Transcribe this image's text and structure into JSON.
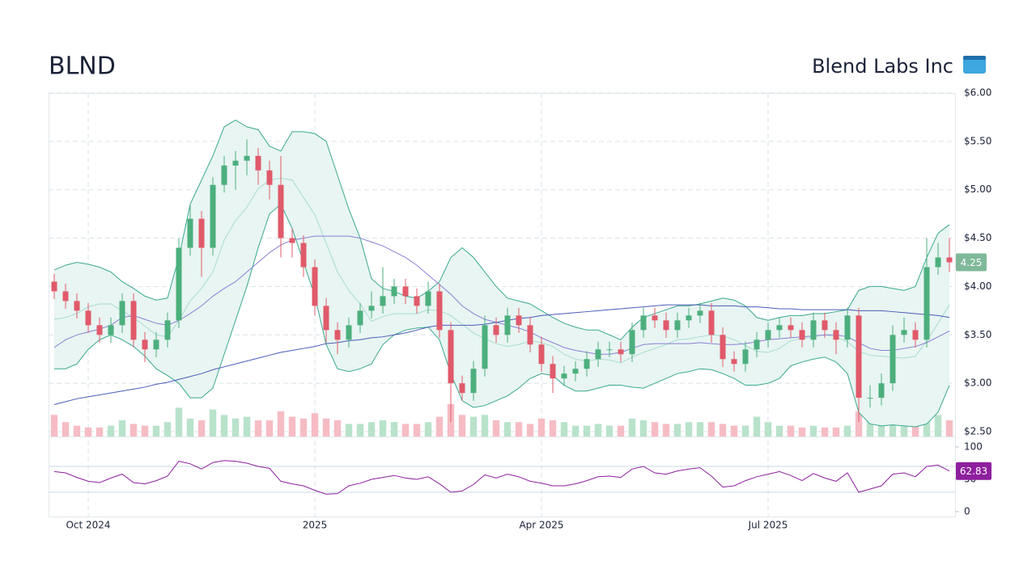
{
  "chart_data": {
    "type": "candlestick",
    "title": "BLND",
    "company": "Blend Labs Inc",
    "categories": [
      null,
      null,
      null,
      "Oct 2024",
      null,
      null,
      null,
      null,
      null,
      null,
      null,
      null,
      null,
      null,
      null,
      null,
      null,
      null,
      null,
      null,
      null,
      null,
      null,
      "2025",
      null,
      null,
      null,
      null,
      null,
      null,
      null,
      null,
      null,
      null,
      null,
      null,
      null,
      null,
      null,
      null,
      null,
      null,
      null,
      "Apr 2025",
      null,
      null,
      null,
      null,
      null,
      null,
      null,
      null,
      null,
      null,
      null,
      null,
      null,
      null,
      null,
      null,
      null,
      null,
      null,
      "Jul 2025",
      null,
      null,
      null,
      null,
      null,
      null,
      null,
      null,
      null,
      null,
      null,
      null,
      null,
      null,
      null,
      null
    ],
    "open": [
      4.05,
      3.95,
      3.85,
      3.75,
      3.6,
      3.5,
      3.6,
      3.85,
      3.45,
      3.35,
      3.45,
      3.65,
      4.4,
      4.7,
      4.4,
      5.05,
      5.25,
      5.3,
      5.35,
      5.2,
      5.05,
      4.5,
      4.45,
      4.2,
      3.8,
      3.55,
      3.45,
      3.6,
      3.75,
      3.8,
      3.9,
      4.0,
      3.9,
      3.8,
      3.95,
      3.55,
      3.0,
      2.9,
      3.15,
      3.6,
      3.5,
      3.7,
      3.6,
      3.4,
      3.2,
      3.05,
      3.1,
      3.15,
      3.25,
      3.35,
      3.35,
      3.3,
      3.55,
      3.7,
      3.65,
      3.55,
      3.65,
      3.7,
      3.75,
      3.5,
      3.25,
      3.2,
      3.35,
      3.45,
      3.55,
      3.6,
      3.55,
      3.45,
      3.65,
      3.55,
      3.45,
      3.7,
      2.85,
      2.85,
      3.0,
      3.5,
      3.55,
      3.45,
      4.2,
      4.3
    ],
    "high": [
      4.13,
      4.03,
      3.93,
      3.83,
      3.68,
      3.68,
      3.93,
      3.93,
      3.53,
      3.53,
      3.73,
      4.5,
      4.85,
      4.78,
      5.13,
      5.35,
      5.4,
      5.52,
      5.43,
      5.3,
      5.35,
      4.6,
      4.53,
      4.28,
      3.88,
      3.63,
      3.68,
      3.83,
      3.95,
      4.2,
      4.08,
      4.08,
      3.98,
      4.05,
      4.03,
      3.63,
      3.08,
      3.23,
      3.7,
      3.68,
      3.78,
      3.78,
      3.68,
      3.48,
      3.28,
      3.18,
      3.23,
      3.33,
      3.43,
      3.43,
      3.43,
      3.63,
      3.78,
      3.78,
      3.73,
      3.73,
      3.78,
      3.83,
      3.83,
      3.58,
      3.33,
      3.43,
      3.53,
      3.63,
      3.68,
      3.68,
      3.63,
      3.73,
      3.73,
      3.63,
      3.78,
      3.78,
      2.98,
      3.1,
      3.6,
      3.68,
      3.63,
      4.5,
      4.45,
      4.5
    ],
    "low": [
      3.87,
      3.77,
      3.67,
      3.52,
      3.42,
      3.42,
      3.52,
      3.37,
      3.22,
      3.27,
      3.37,
      3.57,
      4.32,
      4.1,
      4.32,
      4.97,
      5.0,
      5.15,
      5.05,
      4.9,
      4.3,
      4.3,
      4.1,
      3.7,
      3.42,
      3.3,
      3.37,
      3.52,
      3.67,
      3.72,
      3.82,
      3.82,
      3.72,
      3.72,
      3.47,
      2.6,
      2.82,
      2.82,
      3.07,
      3.42,
      3.42,
      3.52,
      3.32,
      3.12,
      2.9,
      2.97,
      3.02,
      3.07,
      3.17,
      3.27,
      3.22,
      3.22,
      3.47,
      3.57,
      3.47,
      3.47,
      3.57,
      3.62,
      3.42,
      3.17,
      3.12,
      3.12,
      3.27,
      3.37,
      3.47,
      3.47,
      3.37,
      3.37,
      3.47,
      3.3,
      3.37,
      2.6,
      2.75,
      2.77,
      2.92,
      3.42,
      3.37,
      3.37,
      4.12,
      4.15
    ],
    "close": [
      3.95,
      3.85,
      3.75,
      3.6,
      3.5,
      3.6,
      3.85,
      3.45,
      3.35,
      3.45,
      3.65,
      4.4,
      4.7,
      4.4,
      5.05,
      5.25,
      5.3,
      5.35,
      5.2,
      5.05,
      4.5,
      4.45,
      4.2,
      3.8,
      3.55,
      3.45,
      3.6,
      3.75,
      3.8,
      3.9,
      4.0,
      3.9,
      3.8,
      3.95,
      3.55,
      3.0,
      2.9,
      3.15,
      3.6,
      3.5,
      3.7,
      3.6,
      3.4,
      3.2,
      3.05,
      3.1,
      3.15,
      3.25,
      3.35,
      3.35,
      3.3,
      3.55,
      3.7,
      3.65,
      3.55,
      3.65,
      3.7,
      3.75,
      3.5,
      3.25,
      3.2,
      3.35,
      3.45,
      3.55,
      3.6,
      3.55,
      3.45,
      3.65,
      3.55,
      3.45,
      3.7,
      2.85,
      2.85,
      3.0,
      3.5,
      3.55,
      3.45,
      4.2,
      4.3,
      4.25
    ],
    "volume": [
      1.2,
      0.8,
      0.6,
      0.5,
      0.5,
      0.6,
      0.9,
      0.7,
      0.6,
      0.6,
      0.8,
      1.6,
      1.0,
      0.9,
      1.5,
      1.2,
      1.0,
      1.1,
      0.9,
      0.9,
      1.4,
      1.1,
      1.0,
      1.3,
      1.0,
      0.9,
      0.7,
      0.7,
      0.8,
      0.9,
      0.8,
      0.7,
      0.7,
      0.8,
      1.1,
      1.8,
      1.2,
      1.1,
      1.2,
      0.9,
      0.8,
      0.8,
      0.7,
      1.0,
      0.9,
      0.8,
      0.6,
      0.6,
      0.7,
      0.6,
      0.6,
      1.0,
      0.9,
      0.8,
      0.7,
      0.7,
      0.8,
      0.8,
      0.8,
      0.7,
      0.6,
      0.6,
      1.1,
      0.8,
      0.6,
      0.6,
      0.5,
      0.6,
      0.5,
      0.5,
      0.6,
      1.4,
      1.0,
      1.2,
      1.3,
      1.0,
      0.9,
      1.8,
      1.2,
      0.9
    ],
    "up_color": "#4caf7d",
    "down_color": "#e05a6a",
    "volume_up_color": "#b9e2cb",
    "volume_down_color": "#f6bcc4",
    "bollinger": {
      "upper": [
        4.17,
        4.22,
        4.25,
        4.23,
        4.2,
        4.15,
        4.05,
        3.98,
        3.9,
        3.86,
        3.88,
        4.3,
        4.85,
        5.1,
        5.35,
        5.65,
        5.72,
        5.65,
        5.62,
        5.45,
        5.4,
        5.6,
        5.6,
        5.58,
        5.5,
        5.15,
        4.8,
        4.5,
        4.08,
        3.98,
        3.95,
        3.9,
        3.88,
        3.95,
        4.05,
        4.3,
        4.4,
        4.3,
        4.15,
        4.0,
        3.88,
        3.85,
        3.82,
        3.75,
        3.68,
        3.62,
        3.58,
        3.55,
        3.55,
        3.5,
        3.45,
        3.58,
        3.68,
        3.72,
        3.76,
        3.8,
        3.8,
        3.82,
        3.85,
        3.88,
        3.86,
        3.8,
        3.68,
        3.65,
        3.68,
        3.7,
        3.7,
        3.72,
        3.72,
        3.74,
        3.76,
        3.96,
        4.0,
        4.0,
        3.98,
        3.96,
        4.0,
        4.3,
        4.55,
        4.64
      ],
      "middle": [
        3.66,
        3.68,
        3.72,
        3.79,
        3.82,
        3.82,
        3.75,
        3.68,
        3.59,
        3.5,
        3.48,
        3.65,
        3.85,
        3.98,
        4.15,
        4.48,
        4.68,
        4.82,
        5.01,
        5.1,
        5.12,
        5.1,
        4.92,
        4.74,
        4.45,
        4.15,
        3.96,
        3.82,
        3.64,
        3.69,
        3.72,
        3.72,
        3.72,
        3.76,
        3.75,
        3.7,
        3.61,
        3.52,
        3.46,
        3.41,
        3.38,
        3.4,
        3.44,
        3.42,
        3.38,
        3.3,
        3.25,
        3.23,
        3.25,
        3.24,
        3.21,
        3.27,
        3.32,
        3.36,
        3.4,
        3.45,
        3.46,
        3.48,
        3.5,
        3.49,
        3.45,
        3.39,
        3.33,
        3.32,
        3.36,
        3.44,
        3.46,
        3.48,
        3.5,
        3.48,
        3.43,
        3.33,
        3.29,
        3.28,
        3.27,
        3.26,
        3.28,
        3.44,
        3.62,
        3.81
      ],
      "lower": [
        3.15,
        3.15,
        3.2,
        3.35,
        3.45,
        3.5,
        3.45,
        3.38,
        3.28,
        3.15,
        3.08,
        3.0,
        2.85,
        2.85,
        2.95,
        3.3,
        3.65,
        4.0,
        4.4,
        4.75,
        4.85,
        4.6,
        4.25,
        3.9,
        3.4,
        3.15,
        3.12,
        3.15,
        3.2,
        3.4,
        3.5,
        3.55,
        3.57,
        3.58,
        3.45,
        3.1,
        2.82,
        2.75,
        2.77,
        2.82,
        2.87,
        2.95,
        3.05,
        3.1,
        3.08,
        2.98,
        2.92,
        2.92,
        2.95,
        2.98,
        2.98,
        2.96,
        2.95,
        3.0,
        3.05,
        3.1,
        3.12,
        3.15,
        3.14,
        3.1,
        3.05,
        2.98,
        2.98,
        3.0,
        3.05,
        3.18,
        3.22,
        3.25,
        3.27,
        3.22,
        3.1,
        2.7,
        2.58,
        2.56,
        2.57,
        2.56,
        2.55,
        2.58,
        2.7,
        2.98
      ],
      "color": "#3aa88f",
      "middle_color": "#a8dccf",
      "fill": "#e8f5f2"
    },
    "moving_averages": [
      {
        "color": "#8a7fd6",
        "values": [
          3.37,
          3.45,
          3.5,
          3.53,
          3.56,
          3.6,
          3.68,
          3.7,
          3.66,
          3.62,
          3.6,
          3.65,
          3.72,
          3.8,
          3.9,
          3.98,
          4.05,
          4.15,
          4.25,
          4.35,
          4.43,
          4.48,
          4.5,
          4.52,
          4.52,
          4.52,
          4.52,
          4.5,
          4.46,
          4.42,
          4.36,
          4.3,
          4.22,
          4.12,
          4.02,
          3.92,
          3.8,
          3.72,
          3.66,
          3.63,
          3.6,
          3.57,
          3.53,
          3.47,
          3.42,
          3.37,
          3.34,
          3.32,
          3.3,
          3.3,
          3.32,
          3.36,
          3.4,
          3.41,
          3.41,
          3.41,
          3.41,
          3.42,
          3.41,
          3.4,
          3.4,
          3.41,
          3.43,
          3.45,
          3.46,
          3.47,
          3.48,
          3.49,
          3.5,
          3.5,
          3.48,
          3.42,
          3.36,
          3.34,
          3.34,
          3.36,
          3.38,
          3.42,
          3.48,
          3.54
        ]
      },
      {
        "color": "#4a5cb8",
        "values": [
          2.78,
          2.81,
          2.84,
          2.86,
          2.88,
          2.9,
          2.92,
          2.94,
          2.96,
          2.99,
          3.01,
          3.04,
          3.07,
          3.1,
          3.14,
          3.17,
          3.2,
          3.23,
          3.26,
          3.29,
          3.32,
          3.34,
          3.36,
          3.38,
          3.41,
          3.42,
          3.44,
          3.45,
          3.47,
          3.48,
          3.5,
          3.52,
          3.55,
          3.58,
          3.6,
          3.6,
          3.6,
          3.6,
          3.61,
          3.63,
          3.65,
          3.67,
          3.68,
          3.7,
          3.71,
          3.72,
          3.73,
          3.74,
          3.75,
          3.76,
          3.77,
          3.78,
          3.79,
          3.8,
          3.81,
          3.81,
          3.81,
          3.81,
          3.8,
          3.8,
          3.8,
          3.79,
          3.79,
          3.78,
          3.77,
          3.77,
          3.76,
          3.76,
          3.76,
          3.76,
          3.76,
          3.75,
          3.75,
          3.75,
          3.74,
          3.73,
          3.72,
          3.71,
          3.7,
          3.68
        ]
      }
    ],
    "ylim": [
      2.45,
      6.0
    ],
    "yticks": [
      {
        "value": 2.5,
        "label": "$2.50"
      },
      {
        "value": 3.0,
        "label": "$3.00"
      },
      {
        "value": 3.5,
        "label": "$3.50"
      },
      {
        "value": 4.0,
        "label": "$4.00"
      },
      {
        "value": 4.5,
        "label": "$4.50"
      },
      {
        "value": 5.0,
        "label": "$5.00"
      },
      {
        "value": 5.5,
        "label": "$5.50"
      },
      {
        "value": 6.0,
        "label": "$6.00"
      }
    ],
    "grid": true,
    "price_badge_color": "#7fb99a",
    "rsi": {
      "values": [
        62,
        60,
        53,
        47,
        45,
        52,
        58,
        45,
        43,
        48,
        55,
        78,
        74,
        66,
        76,
        79,
        78,
        75,
        70,
        67,
        47,
        43,
        40,
        33,
        27,
        28,
        40,
        44,
        50,
        53,
        56,
        52,
        50,
        54,
        43,
        30,
        32,
        42,
        57,
        52,
        58,
        54,
        47,
        44,
        40,
        40,
        43,
        48,
        54,
        55,
        53,
        66,
        70,
        60,
        58,
        63,
        66,
        68,
        55,
        38,
        40,
        48,
        54,
        58,
        62,
        56,
        48,
        59,
        52,
        47,
        60,
        30,
        35,
        40,
        58,
        60,
        54,
        70,
        72,
        62.83
      ],
      "color": "#8e1f9e",
      "ylim": [
        0,
        100
      ],
      "yticks": [
        0,
        50,
        100
      ],
      "levels": [
        30,
        70
      ]
    }
  }
}
